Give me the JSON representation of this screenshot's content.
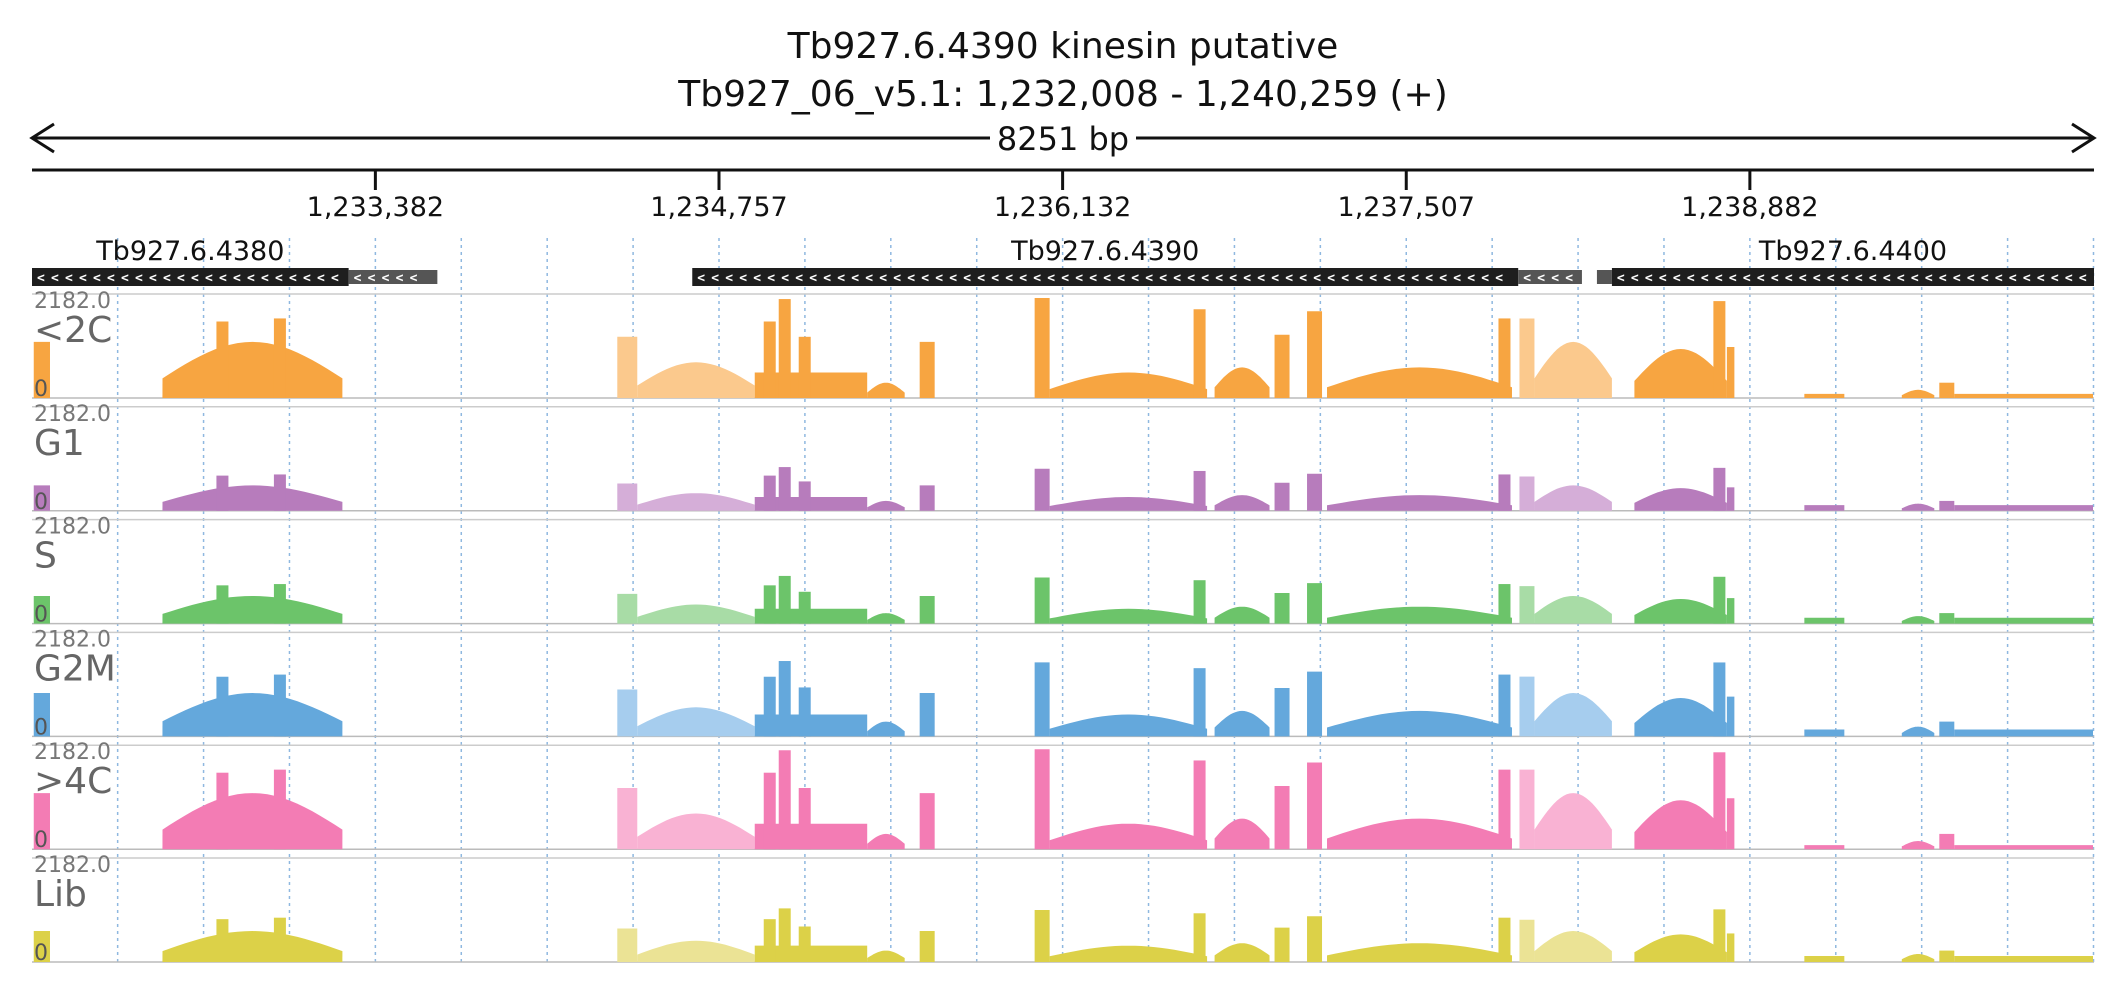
{
  "chart_data": {
    "type": "area",
    "title": "Tb927.6.4390  kinesin  putative",
    "subtitle": "Tb927_06_v5.1: 1,232,008 - 1,240,259 (+)",
    "span_label": "8251 bp",
    "region": {
      "start": 1232008,
      "end": 1240259
    },
    "ticks": [
      {
        "pos": 1233382,
        "label": "1,233,382"
      },
      {
        "pos": 1234757,
        "label": "1,234,757"
      },
      {
        "pos": 1236132,
        "label": "1,236,132"
      },
      {
        "pos": 1237507,
        "label": "1,237,507"
      },
      {
        "pos": 1238882,
        "label": "1,238,882"
      }
    ],
    "grid": true,
    "genes": [
      {
        "name": "Tb927.6.4380",
        "start": 1232008,
        "cds_end": 1233275,
        "utr_end": 1233630,
        "strand": "-"
      },
      {
        "name": "Tb927.6.4390",
        "start": 1234650,
        "cds_end": 1237955,
        "utr_end": 1238210,
        "strand": "-"
      },
      {
        "name": "Tb927.6.4400",
        "start": 1238330,
        "cds_end": 1240259,
        "utr_start": 1238270,
        "strand": "-"
      }
    ],
    "tracks": [
      {
        "name": "<2C",
        "max": "2182.0",
        "min": "0",
        "color": "#f7a541",
        "light": "#fbc98d",
        "scale": 1.0
      },
      {
        "name": "G1",
        "max": "2182.0",
        "min": "0",
        "color": "#b77cbc",
        "light": "#d5aed8",
        "scale": 0.38
      },
      {
        "name": "S",
        "max": "2182.0",
        "min": "0",
        "color": "#6cc46a",
        "light": "#a8dca6",
        "scale": 0.42
      },
      {
        "name": "G2M",
        "max": "2182.0",
        "min": "0",
        "color": "#64a8dc",
        "light": "#a6cdee",
        "scale": 0.7
      },
      {
        "name": ">4C",
        "max": "2182.0",
        "min": "0",
        "color": "#f37cb4",
        "light": "#f9b2d3",
        "scale": 1.0
      },
      {
        "name": "Lib",
        "max": "2182.0",
        "min": "0",
        "color": "#dcd148",
        "light": "#ebe395",
        "scale": 0.48
      }
    ],
    "coverage_segments": [
      {
        "start": 1232015,
        "end": 1232080,
        "level": 0.55,
        "shape": "flat",
        "tone": "dark"
      },
      {
        "start": 1232530,
        "end": 1233250,
        "level": 0.55,
        "shape": "hump",
        "tone": "dark",
        "peaks": [
          {
            "at": 1232770,
            "level": 0.75
          },
          {
            "at": 1233000,
            "level": 0.78
          }
        ]
      },
      {
        "start": 1234350,
        "end": 1234430,
        "level": 0.6,
        "shape": "flat",
        "tone": "light"
      },
      {
        "start": 1234430,
        "end": 1234900,
        "level": 0.35,
        "shape": "hump",
        "tone": "light"
      },
      {
        "start": 1234900,
        "end": 1235350,
        "level": 0.25,
        "shape": "flat",
        "tone": "dark",
        "peaks": [
          {
            "at": 1234960,
            "level": 0.75
          },
          {
            "at": 1235020,
            "level": 0.97
          },
          {
            "at": 1235100,
            "level": 0.6
          }
        ]
      },
      {
        "start": 1235350,
        "end": 1235500,
        "level": 0.15,
        "shape": "hump",
        "tone": "dark"
      },
      {
        "start": 1235560,
        "end": 1235620,
        "level": 0.55,
        "shape": "flat",
        "tone": "dark"
      },
      {
        "start": 1236020,
        "end": 1236080,
        "level": 0.98,
        "shape": "flat",
        "tone": "dark"
      },
      {
        "start": 1236080,
        "end": 1236710,
        "level": 0.25,
        "shape": "hump",
        "tone": "dark",
        "peaks": [
          {
            "at": 1236680,
            "level": 0.87
          }
        ]
      },
      {
        "start": 1236740,
        "end": 1236960,
        "level": 0.3,
        "shape": "hump",
        "tone": "dark"
      },
      {
        "start": 1236980,
        "end": 1237040,
        "level": 0.62,
        "shape": "flat",
        "tone": "dark"
      },
      {
        "start": 1237110,
        "end": 1237170,
        "level": 0.85,
        "shape": "flat",
        "tone": "dark"
      },
      {
        "start": 1237190,
        "end": 1237930,
        "level": 0.3,
        "shape": "hump",
        "tone": "dark",
        "peaks": [
          {
            "at": 1237900,
            "level": 0.78
          }
        ]
      },
      {
        "start": 1237960,
        "end": 1238020,
        "level": 0.78,
        "shape": "flat",
        "tone": "light"
      },
      {
        "start": 1238020,
        "end": 1238330,
        "level": 0.55,
        "shape": "hump",
        "tone": "light"
      },
      {
        "start": 1238420,
        "end": 1238790,
        "level": 0.48,
        "shape": "hump",
        "tone": "dark",
        "peaks": [
          {
            "at": 1238760,
            "level": 0.95
          }
        ]
      },
      {
        "start": 1238790,
        "end": 1238820,
        "level": 0.5,
        "shape": "flat",
        "tone": "dark"
      },
      {
        "start": 1239100,
        "end": 1239260,
        "level": 0.04,
        "shape": "flat",
        "tone": "dark"
      },
      {
        "start": 1239490,
        "end": 1239620,
        "level": 0.08,
        "shape": "hump",
        "tone": "dark"
      },
      {
        "start": 1239640,
        "end": 1239700,
        "level": 0.15,
        "shape": "flat",
        "tone": "dark"
      },
      {
        "start": 1239700,
        "end": 1240255,
        "level": 0.04,
        "shape": "flat",
        "tone": "dark"
      }
    ]
  }
}
